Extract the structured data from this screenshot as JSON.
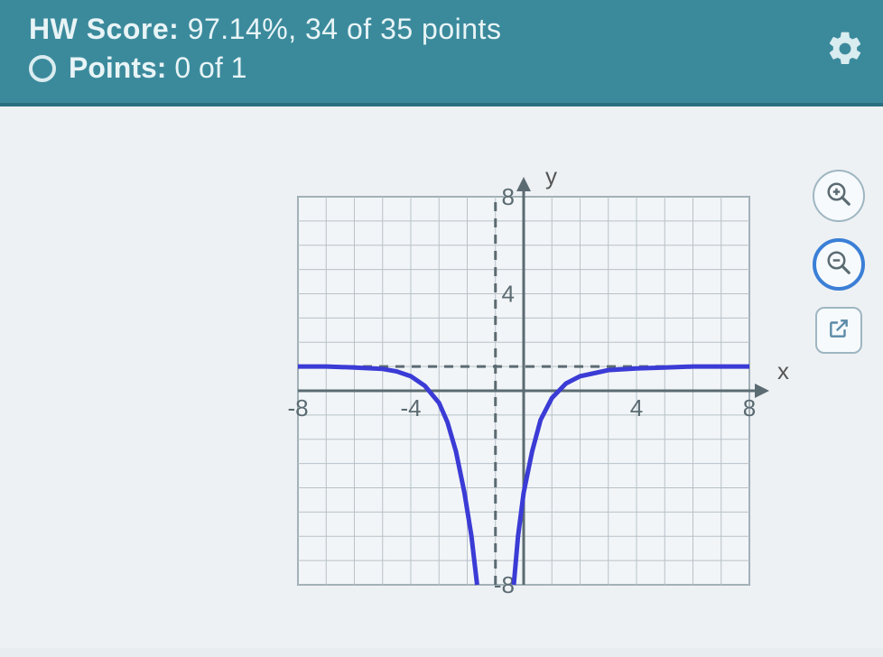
{
  "header": {
    "hw_label": "HW Score:",
    "hw_value": "97.14%, 34 of 35 points",
    "points_label": "Points:",
    "points_value": "0 of 1"
  },
  "chart": {
    "type": "line",
    "x_label": "x",
    "y_label": "y",
    "xlim": [
      -8,
      8
    ],
    "ylim": [
      -8,
      8
    ],
    "xtick_step": 4,
    "ytick_step": 4,
    "xticks": [
      -8,
      -4,
      4,
      8
    ],
    "yticks": [
      -8,
      4,
      8
    ],
    "grid_step": 1,
    "grid_color": "#b7c2c8",
    "axis_color": "#5b6b72",
    "background_color": "#f2f5f7",
    "curve_color": "#3b3bd6",
    "curve_width": 5,
    "vertical_asymptote": -1,
    "horizontal_asymptote": 1,
    "series_left": [
      [
        -8,
        1
      ],
      [
        -7,
        1
      ],
      [
        -6,
        0.96
      ],
      [
        -5,
        0.9
      ],
      [
        -4.5,
        0.8
      ],
      [
        -4,
        0.6
      ],
      [
        -3.5,
        0.2
      ],
      [
        -3,
        -0.5
      ],
      [
        -2.7,
        -1.3
      ],
      [
        -2.4,
        -2.5
      ],
      [
        -2.1,
        -4.2
      ],
      [
        -1.85,
        -6
      ],
      [
        -1.65,
        -8
      ]
    ],
    "series_right": [
      [
        -0.35,
        -8
      ],
      [
        -0.2,
        -6
      ],
      [
        0,
        -4.2
      ],
      [
        0.3,
        -2.5
      ],
      [
        0.6,
        -1.2
      ],
      [
        1,
        -0.3
      ],
      [
        1.5,
        0.3
      ],
      [
        2,
        0.6
      ],
      [
        3,
        0.85
      ],
      [
        4,
        0.92
      ],
      [
        5,
        0.96
      ],
      [
        6,
        1
      ],
      [
        7,
        1
      ],
      [
        8,
        1
      ]
    ]
  },
  "icons": {
    "gear": "gear-icon",
    "zoom_in": "zoom-in-icon",
    "zoom_out": "zoom-out-icon",
    "popout": "popout-icon"
  },
  "colors": {
    "header_bg": "#3b8a9c",
    "header_text": "#e8f4f6",
    "body_bg": "#e8edf0",
    "button_border": "#9fb6c2",
    "button_active": "#3b7fd6"
  }
}
